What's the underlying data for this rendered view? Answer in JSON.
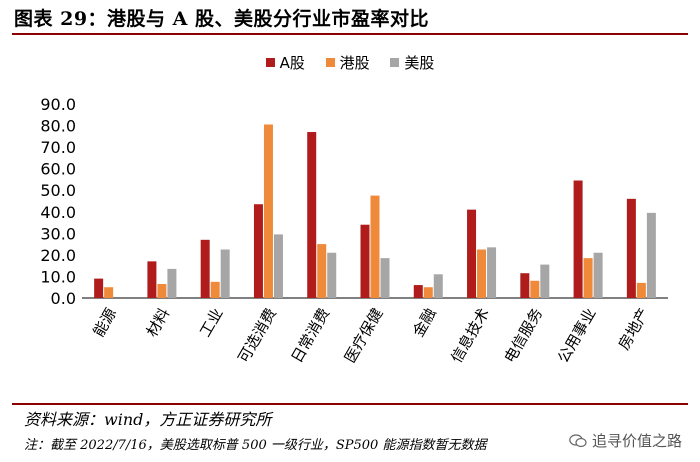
{
  "header": {
    "title": "图表 29：港股与 A 股、美股分行业市盈率对比"
  },
  "colors": {
    "a_share": "#b01c1c",
    "hk_share": "#ee8a3a",
    "us_share": "#a6a6a6",
    "rule": "#8b0000"
  },
  "footer": {
    "source": "资料来源：wind，方正证券研究所",
    "note": "注：截至 2022/7/16，美股选取标普 500 一级行业，SP500 能源指数暂无数据",
    "watermark": "追寻价值之路"
  },
  "chart_data": {
    "type": "bar",
    "categories": [
      "能源",
      "材料",
      "工业",
      "可选消费",
      "日常消费",
      "医疗保健",
      "金融",
      "信息技术",
      "电信服务",
      "公用事业",
      "房地产"
    ],
    "series": [
      {
        "name": "A股",
        "color": "#b01c1c",
        "values": [
          9.0,
          17.0,
          27.0,
          43.5,
          77.0,
          34.0,
          6.0,
          41.0,
          11.5,
          54.5,
          46.0
        ]
      },
      {
        "name": "港股",
        "color": "#ee8a3a",
        "values": [
          5.0,
          6.5,
          7.5,
          80.5,
          25.0,
          47.5,
          5.0,
          22.5,
          8.0,
          18.5,
          7.0
        ]
      },
      {
        "name": "美股",
        "color": "#a6a6a6",
        "values": [
          null,
          13.5,
          22.5,
          29.5,
          21.0,
          18.5,
          11.0,
          23.5,
          15.5,
          21.0,
          39.5
        ]
      }
    ],
    "ylim": [
      0,
      90
    ],
    "y_ticks": [
      "0.0",
      "10.0",
      "20.0",
      "30.0",
      "40.0",
      "50.0",
      "60.0",
      "70.0",
      "80.0",
      "90.0"
    ],
    "grid": false,
    "legend_position": "top-center"
  }
}
